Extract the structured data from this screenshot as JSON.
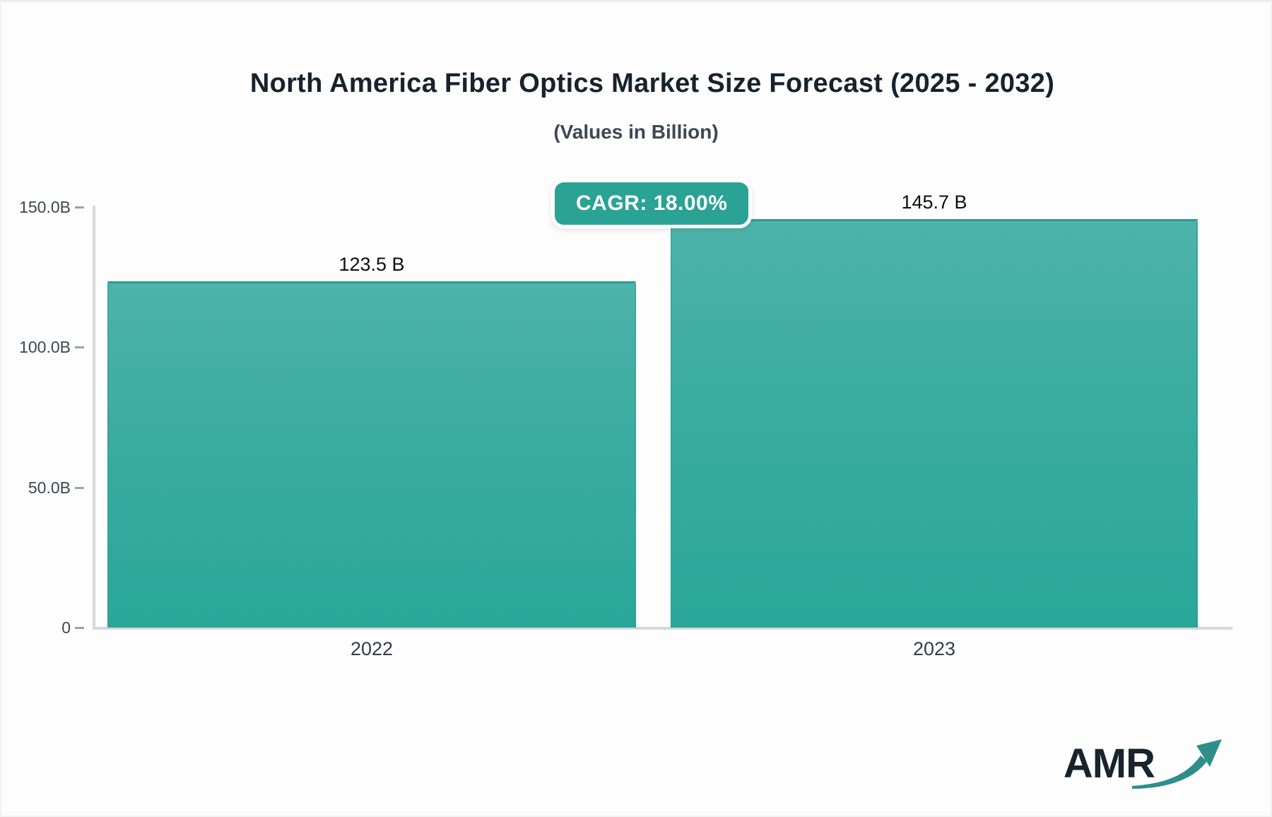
{
  "chart_data": {
    "type": "bar",
    "title": "North America Fiber Optics Market Size Forecast (2025 - 2032)",
    "subtitle": "(Values in Billion)",
    "categories": [
      "2022",
      "2023"
    ],
    "values": [
      123.5,
      145.7
    ],
    "value_labels": [
      "123.5 B",
      "145.7 B"
    ],
    "ylim": [
      0,
      150
    ],
    "yticks": [
      {
        "label": "150.0B",
        "value": 150
      },
      {
        "label": "100.0B",
        "value": 100
      },
      {
        "label": "50.0B",
        "value": 50
      },
      {
        "label": "0",
        "value": 0
      }
    ],
    "grid": false,
    "legend": "none",
    "bar_color_top": "#4eb3aa",
    "bar_color_bottom": "#2aa79a",
    "bar_border_color": "#2d9c8e"
  },
  "badge": {
    "label": "CAGR: 18.00%",
    "background": "#2aa294",
    "text_color": "#ffffff"
  },
  "logo": {
    "text": "AMR",
    "text_color": "#17242e",
    "arrow_color": "#2e8e8b"
  }
}
